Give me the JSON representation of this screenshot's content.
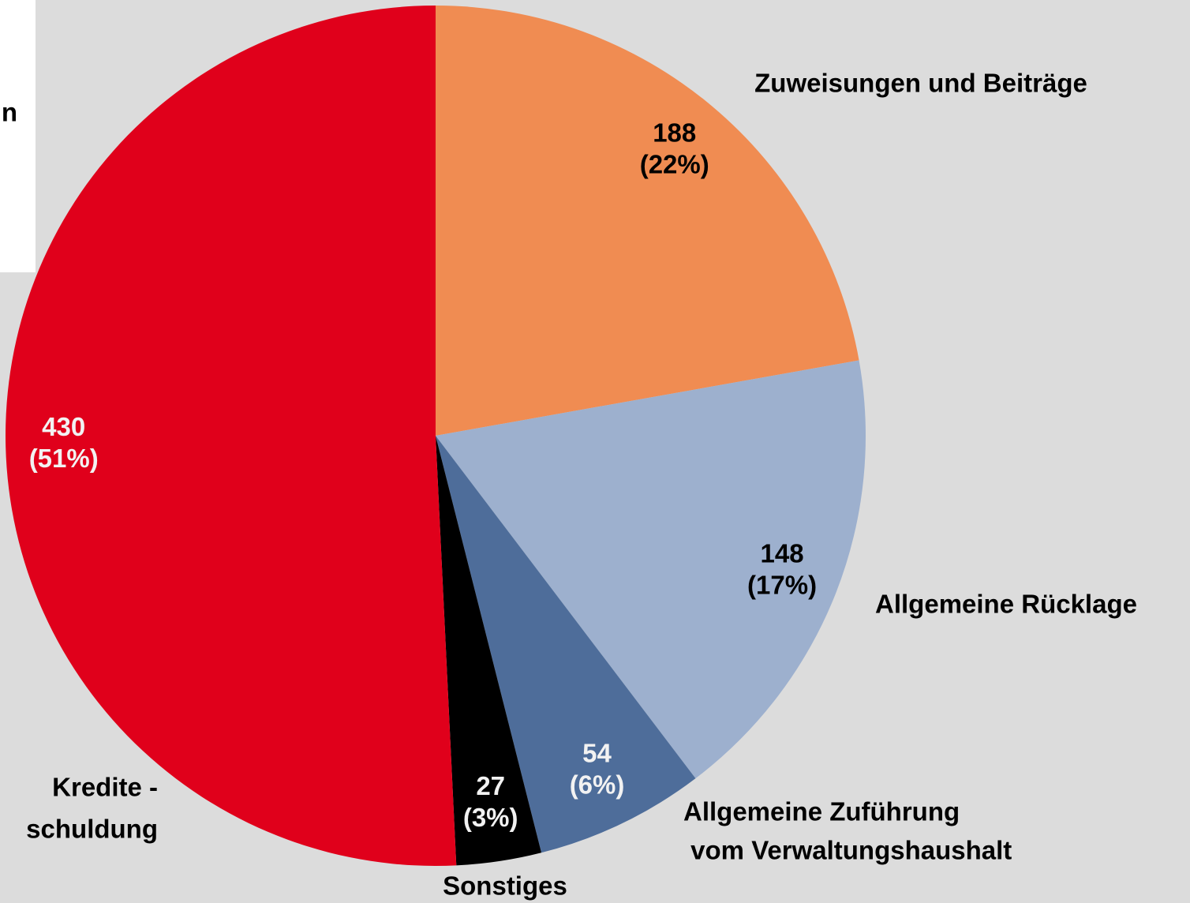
{
  "chart_data": {
    "type": "pie",
    "annotation": "n",
    "categories": [
      [
        "Zuweisungen und Beiträge"
      ],
      [
        "Allgemeine Rücklage"
      ],
      [
        "Allgemeine Zuführung",
        " vom Verwaltungshaushalt"
      ],
      [
        "Sonstiges"
      ],
      [
        "Kredite -",
        "schuldung"
      ]
    ],
    "values": [
      188,
      148,
      54,
      27,
      430
    ],
    "percent_labels": [
      "(22%)",
      "(17%)",
      "(6%)",
      "(3%)",
      "(51%)"
    ],
    "colors": [
      "#f08c52",
      "#9db0ce",
      "#4e6d9a",
      "#000000",
      "#e0001b"
    ],
    "start_angle": 0,
    "direction": "clockwise"
  }
}
